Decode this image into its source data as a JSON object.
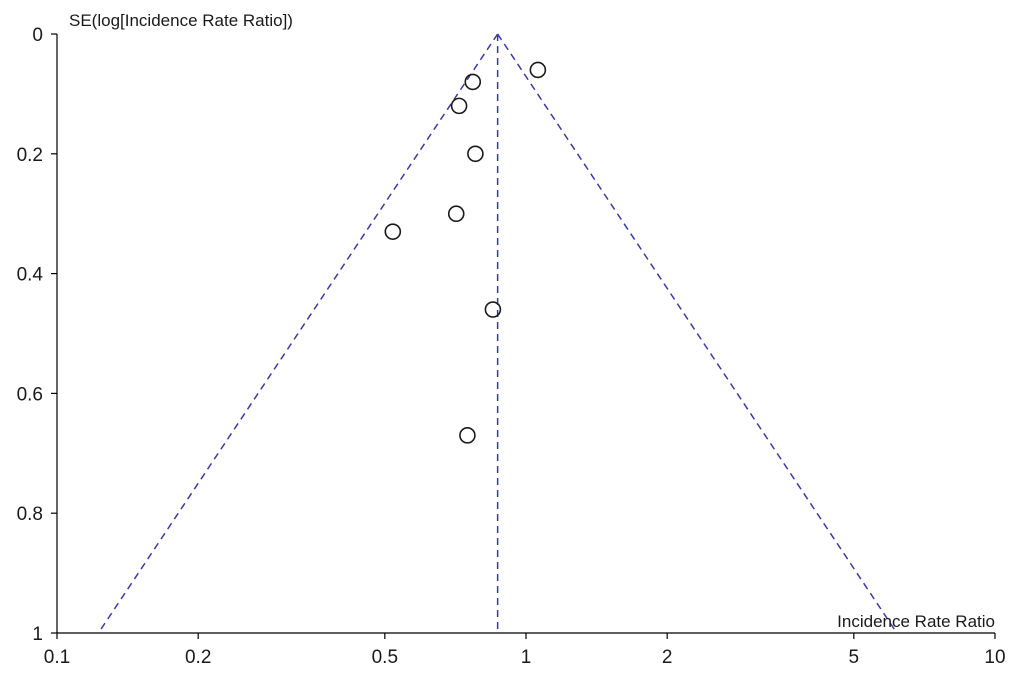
{
  "chart_data": {
    "type": "scatter",
    "subtype": "funnel-plot",
    "title": "",
    "xlabel": "Incidence Rate Ratio",
    "ylabel": "SE(log[Incidence Rate Ratio])",
    "x_scale": "log",
    "xlim": [
      0.1,
      10
    ],
    "ylim": [
      0,
      1
    ],
    "y_reversed": true,
    "x_ticks": [
      0.1,
      0.2,
      0.5,
      1,
      2,
      5,
      10
    ],
    "x_tick_labels": [
      "0.1",
      "0.2",
      "0.5",
      "1",
      "2",
      "5",
      "10"
    ],
    "y_ticks": [
      0,
      0.2,
      0.4,
      0.6,
      0.8,
      1
    ],
    "y_tick_labels": [
      "0",
      "0.2",
      "0.4",
      "0.6",
      "0.8",
      "1"
    ],
    "pooled_estimate": 0.87,
    "funnel_lines": "dashed",
    "grid": false,
    "points": [
      {
        "x": 1.06,
        "y": 0.06
      },
      {
        "x": 0.77,
        "y": 0.08
      },
      {
        "x": 0.72,
        "y": 0.12
      },
      {
        "x": 0.78,
        "y": 0.2
      },
      {
        "x": 0.71,
        "y": 0.3
      },
      {
        "x": 0.52,
        "y": 0.33
      },
      {
        "x": 0.85,
        "y": 0.46
      },
      {
        "x": 0.75,
        "y": 0.67
      }
    ],
    "colors": {
      "axis": "#000000",
      "funnel": "#3a3aa0",
      "markers": "#1a1a1a"
    }
  }
}
